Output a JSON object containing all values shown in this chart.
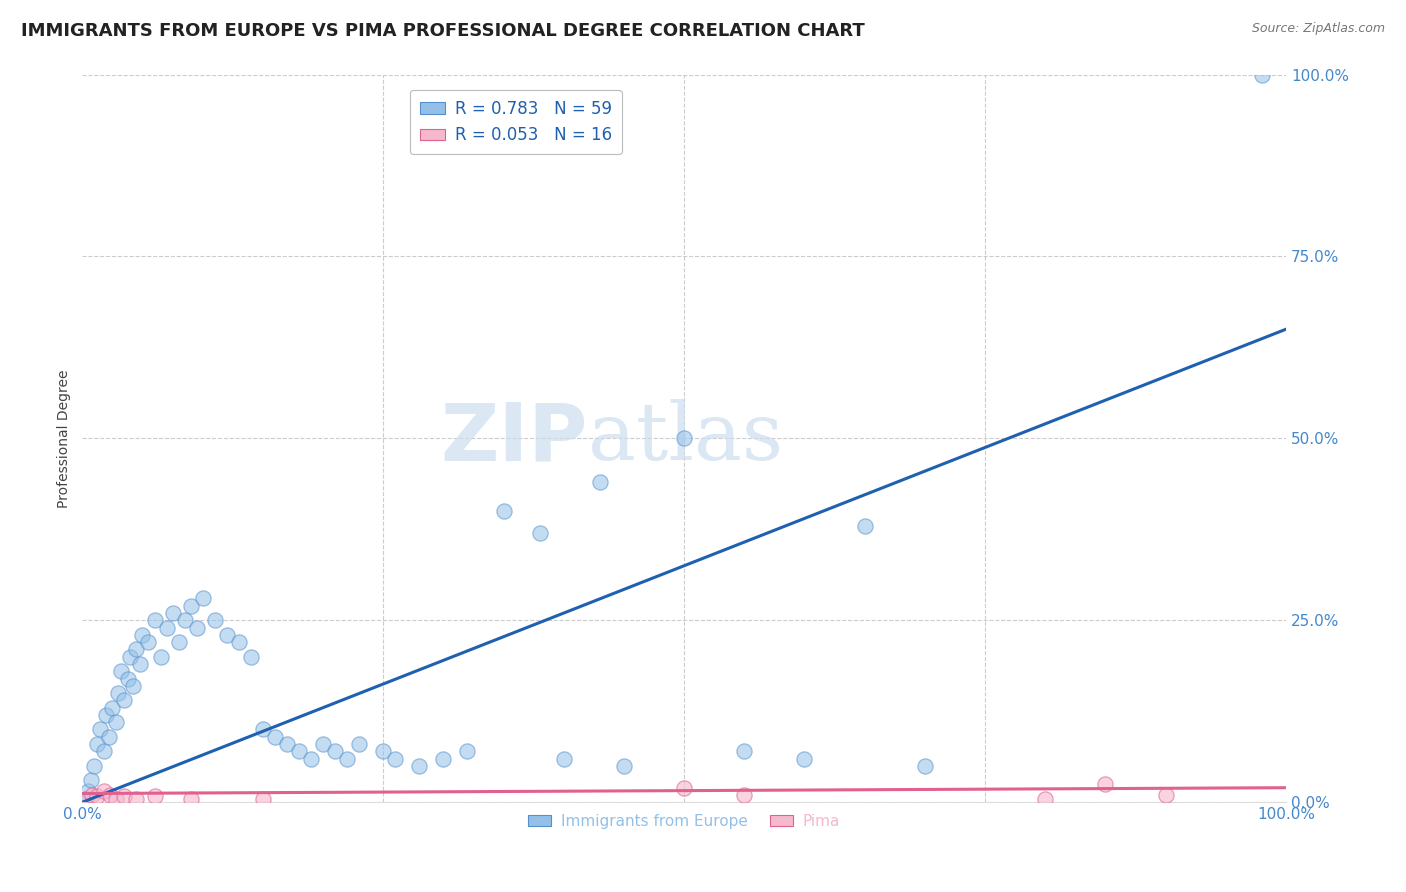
{
  "title": "IMMIGRANTS FROM EUROPE VS PIMA PROFESSIONAL DEGREE CORRELATION CHART",
  "source": "Source: ZipAtlas.com",
  "ylabel": "Professional Degree",
  "watermark_zip": "ZIP",
  "watermark_atlas": "atlas",
  "legend_line1": "R = 0.783   N = 59",
  "legend_line2": "R = 0.053   N = 16",
  "blue_scatter_x": [
    0.3,
    0.5,
    0.7,
    1.0,
    1.2,
    1.5,
    1.8,
    2.0,
    2.2,
    2.5,
    2.8,
    3.0,
    3.2,
    3.5,
    3.8,
    4.0,
    4.2,
    4.5,
    4.8,
    5.0,
    5.5,
    6.0,
    6.5,
    7.0,
    7.5,
    8.0,
    8.5,
    9.0,
    9.5,
    10.0,
    11.0,
    12.0,
    13.0,
    14.0,
    15.0,
    16.0,
    17.0,
    18.0,
    19.0,
    20.0,
    21.0,
    22.0,
    23.0,
    25.0,
    26.0,
    28.0,
    30.0,
    32.0,
    35.0,
    38.0,
    40.0,
    43.0,
    45.0,
    50.0,
    55.0,
    60.0,
    65.0,
    70.0,
    98.0
  ],
  "blue_scatter_y": [
    0.5,
    1.5,
    3.0,
    5.0,
    8.0,
    10.0,
    7.0,
    12.0,
    9.0,
    13.0,
    11.0,
    15.0,
    18.0,
    14.0,
    17.0,
    20.0,
    16.0,
    21.0,
    19.0,
    23.0,
    22.0,
    25.0,
    20.0,
    24.0,
    26.0,
    22.0,
    25.0,
    27.0,
    24.0,
    28.0,
    25.0,
    23.0,
    22.0,
    20.0,
    10.0,
    9.0,
    8.0,
    7.0,
    6.0,
    8.0,
    7.0,
    6.0,
    8.0,
    7.0,
    6.0,
    5.0,
    6.0,
    7.0,
    40.0,
    37.0,
    6.0,
    44.0,
    5.0,
    50.0,
    7.0,
    6.0,
    38.0,
    5.0,
    100.0
  ],
  "pink_scatter_x": [
    0.3,
    0.8,
    1.2,
    1.8,
    2.3,
    2.8,
    3.5,
    4.5,
    6.0,
    9.0,
    15.0,
    50.0,
    55.0,
    80.0,
    85.0,
    90.0
  ],
  "pink_scatter_y": [
    0.5,
    1.0,
    0.8,
    1.5,
    1.0,
    0.5,
    0.8,
    0.5,
    0.8,
    0.5,
    0.5,
    2.0,
    1.0,
    0.5,
    2.5,
    1.0
  ],
  "blue_line_x": [
    0,
    100
  ],
  "blue_line_y": [
    0,
    65
  ],
  "pink_line_x": [
    0,
    100
  ],
  "pink_line_y": [
    1.2,
    2.0
  ],
  "xlim": [
    0,
    100
  ],
  "ylim": [
    0,
    100
  ],
  "yticks": [
    0,
    25,
    50,
    75,
    100
  ],
  "ytick_labels": [
    "0.0%",
    "25.0%",
    "50.0%",
    "75.0%",
    "100.0%"
  ],
  "xtick_labels": [
    "0.0%",
    "100.0%"
  ],
  "background_color": "#ffffff",
  "grid_color": "#cccccc",
  "blue_dot_color": "#92c0e8",
  "blue_dot_edge": "#5590cc",
  "blue_line_color": "#2060b0",
  "pink_dot_color": "#f5b8cc",
  "pink_dot_edge": "#e06090",
  "pink_line_color": "#e06090",
  "tick_color": "#4488cc",
  "title_fontsize": 13,
  "axis_label_fontsize": 10,
  "tick_fontsize": 11
}
